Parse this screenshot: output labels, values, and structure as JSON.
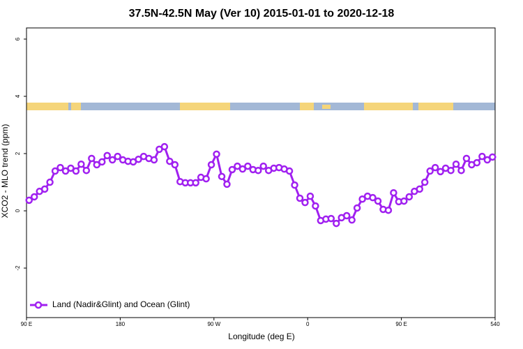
{
  "chart_data": {
    "type": "line",
    "title": "37.5N-42.5N May (Ver 10)   2015-01-01 to 2020-12-18",
    "xlabel": "Longitude (deg E)",
    "ylabel": "XCO2 - MLO trend (ppm)",
    "xlim": [
      90,
      540
    ],
    "ylim": [
      -3.73,
      6.39
    ],
    "xticks": [
      {
        "value": 90,
        "label": "90 E"
      },
      180,
      {
        "value": 270,
        "label": "90 W"
      },
      {
        "value": 360,
        "label": "0"
      },
      {
        "value": 450,
        "label": "90 E"
      },
      540
    ],
    "yticks": [
      6,
      4,
      2,
      0,
      -2
    ],
    "legend": "bottom-left",
    "x": [
      92.5,
      97.5,
      102.5,
      107.5,
      112.5,
      117.5,
      122.5,
      127.5,
      132.5,
      137.5,
      142.5,
      147.5,
      152.5,
      157.5,
      162.5,
      167.5,
      172.5,
      177.5,
      182.5,
      187.5,
      192.5,
      197.5,
      202.5,
      207.5,
      212.5,
      217.5,
      222.5,
      227.5,
      232.5,
      237.5,
      242.5,
      247.5,
      252.5,
      257.5,
      262.5,
      267.5,
      272.5,
      277.5,
      282.5,
      287.5,
      292.5,
      297.5,
      302.5,
      307.5,
      312.5,
      317.5,
      322.5,
      327.5,
      332.5,
      337.5,
      342.5,
      347.5,
      352.5,
      357.5,
      362.5,
      367.5,
      372.5,
      377.5,
      382.5,
      387.5,
      392.5,
      397.5,
      402.5,
      407.5,
      412.5,
      417.5,
      422.5,
      427.5,
      432.5,
      437.5,
      442.5,
      447.5,
      452.5,
      457.5,
      462.5,
      467.5,
      472.5,
      477.5,
      482.5,
      487.5,
      492.5,
      497.5,
      502.5,
      507.5,
      512.5,
      517.5,
      522.5,
      527.5,
      532.5,
      537.5
    ],
    "series": [
      {
        "name": "Land (Nadir&Glint) and Ocean (Glint)",
        "color": "#a020f0",
        "values": [
          0.37,
          0.49,
          0.68,
          0.76,
          1.0,
          1.39,
          1.51,
          1.39,
          1.49,
          1.39,
          1.63,
          1.41,
          1.83,
          1.61,
          1.71,
          1.93,
          1.78,
          1.9,
          1.78,
          1.73,
          1.71,
          1.8,
          1.9,
          1.83,
          1.78,
          2.15,
          2.24,
          1.73,
          1.61,
          1.02,
          0.98,
          0.98,
          0.98,
          1.17,
          1.12,
          1.61,
          1.98,
          1.2,
          0.93,
          1.44,
          1.56,
          1.46,
          1.56,
          1.44,
          1.41,
          1.56,
          1.41,
          1.49,
          1.51,
          1.46,
          1.39,
          0.9,
          0.44,
          0.29,
          0.51,
          0.17,
          -0.34,
          -0.29,
          -0.27,
          -0.44,
          -0.24,
          -0.17,
          -0.32,
          0.1,
          0.41,
          0.51,
          0.46,
          0.34,
          0.05,
          0.02,
          0.63,
          0.32,
          0.34,
          0.49,
          0.68,
          0.76,
          1.0,
          1.39,
          1.51,
          1.37,
          1.49,
          1.41,
          1.63,
          1.41,
          1.83,
          1.61,
          1.68,
          1.9,
          1.78,
          1.88
        ]
      }
    ]
  }
}
